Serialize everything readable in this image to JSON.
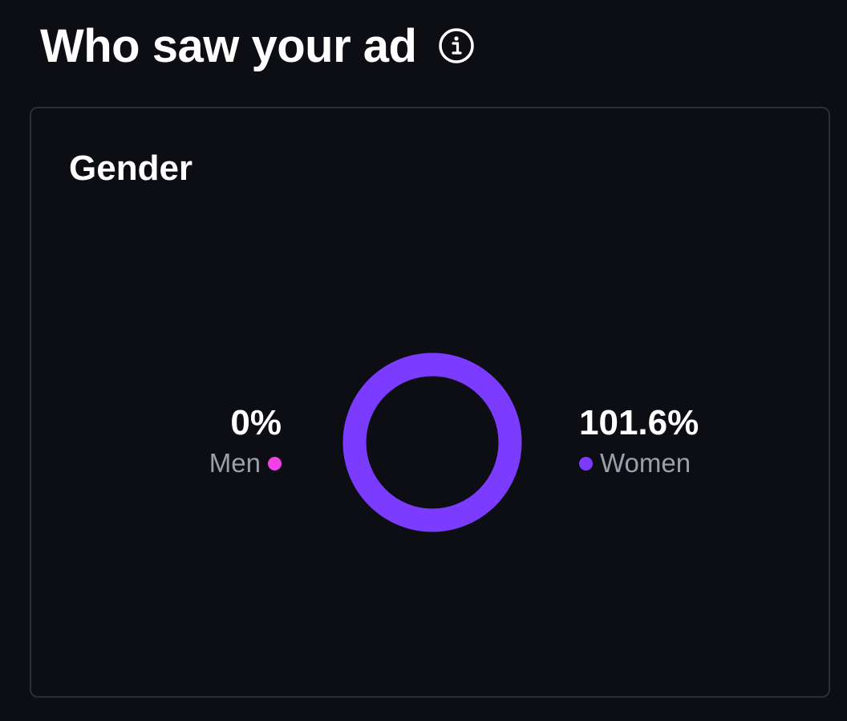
{
  "header": {
    "title": "Who saw your ad",
    "info_icon": "info-circle-icon"
  },
  "gender_card": {
    "title": "Gender",
    "men": {
      "label": "Men",
      "value": "0%",
      "color": "#f241e8"
    },
    "women": {
      "label": "Women",
      "value": "101.6%",
      "color": "#7b3cff"
    }
  },
  "chart_data": {
    "type": "pie",
    "categories": [
      "Men",
      "Women"
    ],
    "values": [
      0,
      101.6
    ],
    "colors": [
      "#f241e8",
      "#7b3cff"
    ]
  }
}
